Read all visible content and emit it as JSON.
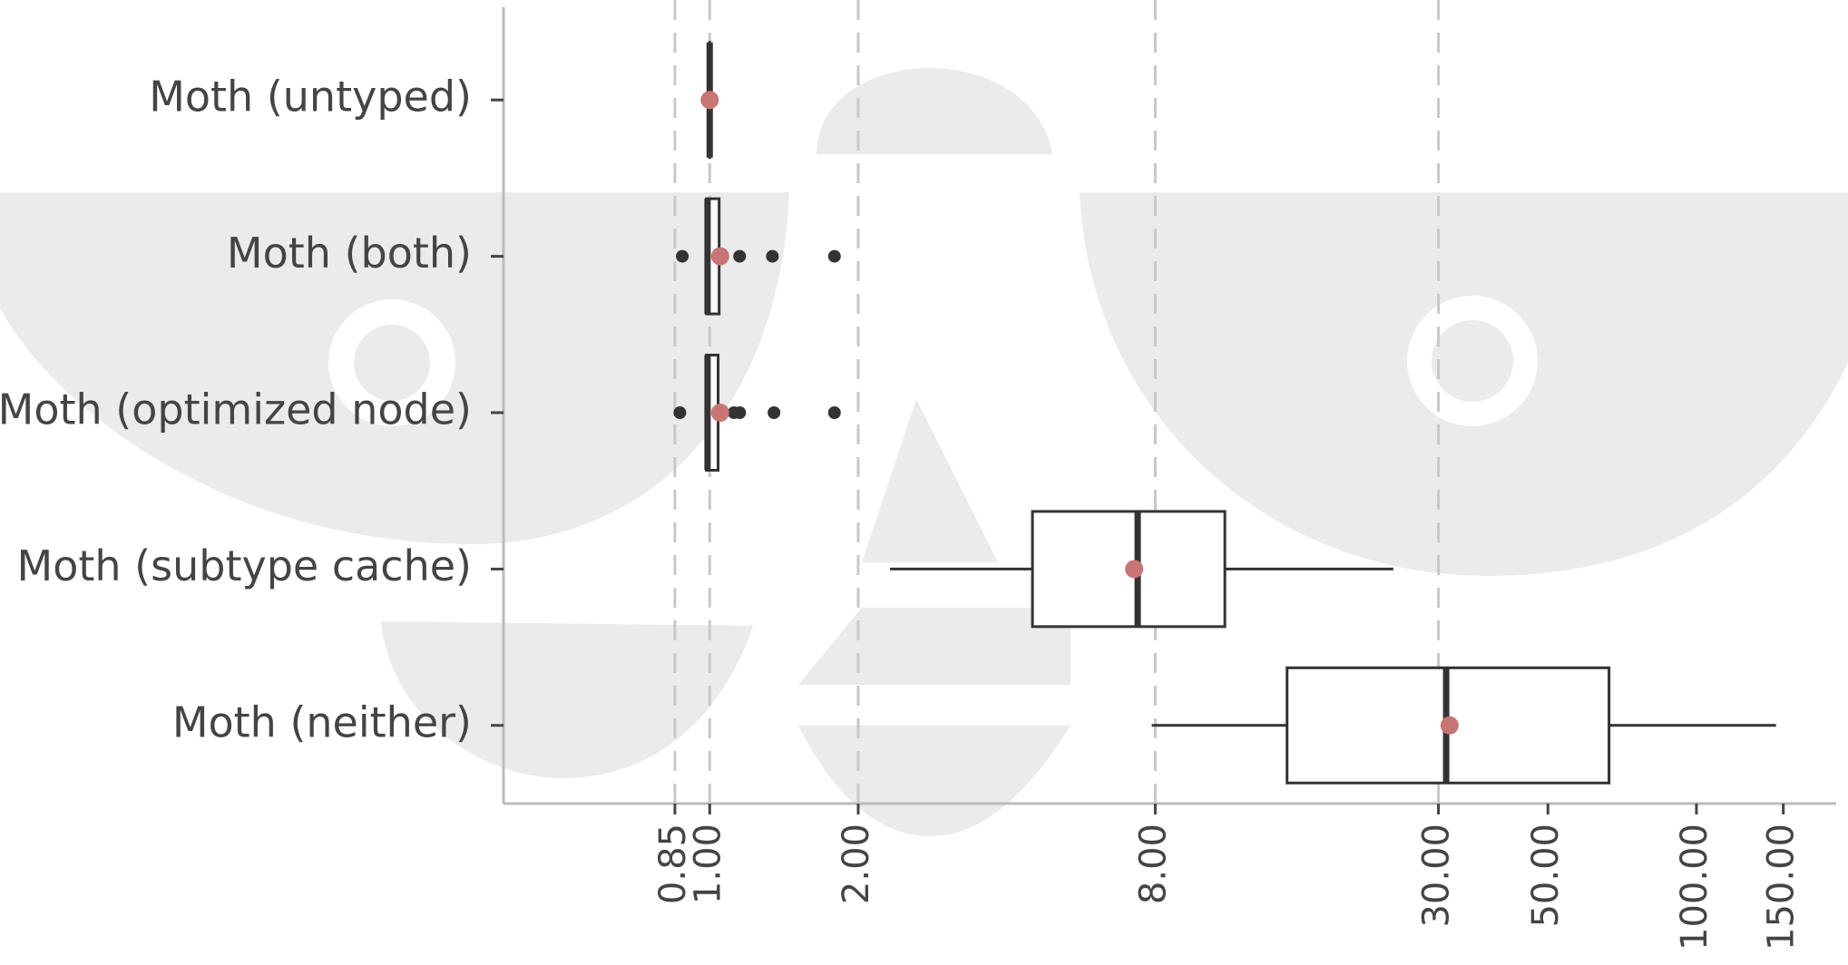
{
  "chart_data": {
    "type": "boxplot",
    "categories": [
      "Moth (untyped)",
      "Moth (both)",
      "Moth (optimized node)",
      "Moth (subtype cache)",
      "Moth (neither)"
    ],
    "boxes": [
      {
        "whisker_low": 1.0,
        "q1": 1.0,
        "median": 1.0,
        "q3": 1.0,
        "whisker_high": 1.0,
        "mean": 1.0,
        "outliers": []
      },
      {
        "whisker_low": 0.985,
        "q1": 0.985,
        "median": 0.99,
        "q3": 1.045,
        "whisker_high": 1.045,
        "mean": 1.05,
        "outliers": [
          0.88,
          1.15,
          1.34,
          1.79
        ]
      },
      {
        "whisker_low": 0.985,
        "q1": 0.985,
        "median": 0.99,
        "q3": 1.04,
        "whisker_high": 1.04,
        "mean": 1.05,
        "outliers": [
          0.87,
          1.12,
          1.15,
          1.35,
          1.79
        ]
      },
      {
        "whisker_low": 2.32,
        "q1": 4.51,
        "median": 7.37,
        "q3": 11.07,
        "whisker_high": 24.3,
        "mean": 7.25,
        "outliers": []
      },
      {
        "whisker_low": 7.87,
        "q1": 14.8,
        "median": 31.1,
        "q3": 66.5,
        "whisker_high": 145,
        "mean": 31.6,
        "outliers": []
      }
    ],
    "mean_color": "#c87575",
    "box_color": "#333333",
    "xscale": "log",
    "xlim": [
      0.382,
      192
    ],
    "xticks": [
      {
        "value": 0.85,
        "label": "0.85"
      },
      {
        "value": 1,
        "label": "1.00"
      },
      {
        "value": 2,
        "label": "2.00"
      },
      {
        "value": 8,
        "label": "8.00"
      },
      {
        "value": 30,
        "label": "30.00"
      },
      {
        "value": 50,
        "label": "50.00"
      },
      {
        "value": 100,
        "label": "100.00"
      },
      {
        "value": 150,
        "label": "150.00"
      }
    ],
    "reference_lines": [
      0.85,
      1,
      2,
      8,
      30
    ]
  }
}
